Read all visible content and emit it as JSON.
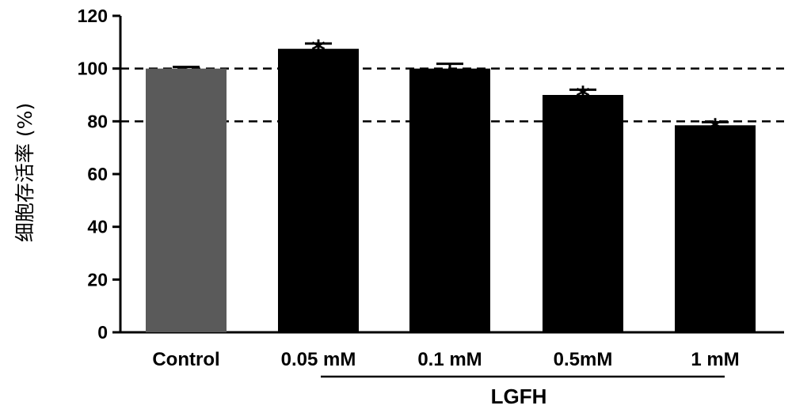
{
  "chart_data": {
    "type": "bar",
    "ylabel": "细胞存活率 (%)",
    "xlabel": "",
    "ylim": [
      0,
      120
    ],
    "y_ticks": [
      "0",
      "20",
      "40",
      "60",
      "80",
      "100",
      "120"
    ],
    "categories": [
      "Control",
      "0.05 mM",
      "0.1 mM",
      "0.5mM",
      "1 mM"
    ],
    "values": [
      100,
      107.5,
      100,
      90,
      78.5
    ],
    "errors": [
      0.6,
      2.0,
      1.8,
      2.0,
      1.2
    ],
    "significance": [
      "",
      "*",
      "",
      "*",
      "*"
    ],
    "bar_colors": [
      "#5a5a5a",
      "#000000",
      "#000000",
      "#000000",
      "#000000"
    ],
    "reference_lines": [
      100,
      80
    ],
    "group": {
      "label": "LGFH",
      "categories": [
        "0.05 mM",
        "0.1 mM",
        "0.5mM",
        "1 mM"
      ]
    },
    "grid": false
  }
}
